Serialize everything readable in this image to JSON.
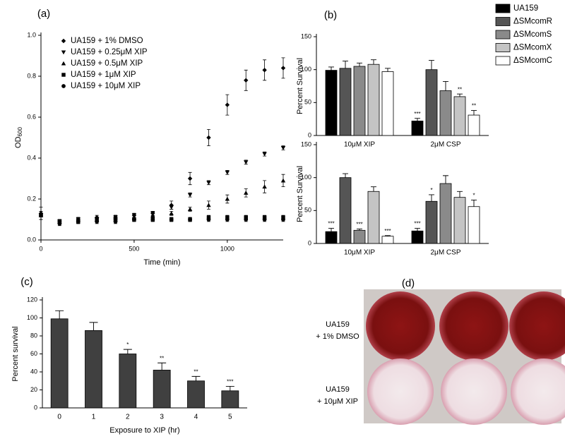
{
  "chart_data": [
    {
      "type": "scatter",
      "label": "(a)",
      "xlabel": "Time (min)",
      "ylabel": "OD",
      "ylabel_sub": "600",
      "x": [
        0,
        100,
        200,
        300,
        400,
        500,
        600,
        700,
        800,
        900,
        1000,
        1100,
        1200,
        1300
      ],
      "xlim": [
        0,
        1300
      ],
      "xticks": [
        0,
        500,
        1000
      ],
      "ylim": [
        0,
        1.0
      ],
      "yticks": [
        {
          "value": 0,
          "label": "0.0"
        },
        0.2,
        0.4,
        0.6,
        0.8,
        {
          "value": 1.0,
          "label": "1.0"
        }
      ],
      "legend": "upper left",
      "series": [
        {
          "name": "UA159 + 1% DMSO",
          "color": "#000000",
          "marker": "diamond",
          "values": [
            0.13,
            0.09,
            0.1,
            0.11,
            0.11,
            0.12,
            0.13,
            0.17,
            0.3,
            0.5,
            0.66,
            0.78,
            0.83,
            0.84
          ],
          "errors": [
            0.03,
            0.01,
            0.01,
            0.01,
            0.01,
            0.01,
            0.01,
            0.02,
            0.03,
            0.04,
            0.05,
            0.05,
            0.05,
            0.05
          ]
        },
        {
          "name": "UA159 + 0.25μM XIP",
          "color": "#000000",
          "marker": "triangle-down",
          "values": [
            0.12,
            0.09,
            0.1,
            0.1,
            0.11,
            0.12,
            0.13,
            0.16,
            0.22,
            0.28,
            0.33,
            0.38,
            0.42,
            0.45
          ],
          "errors": [
            0.02,
            0.01,
            0.01,
            0.01,
            0.01,
            0.01,
            0.01,
            0.01,
            0.01,
            0.01,
            0.01,
            0.01,
            0.01,
            0.01
          ]
        },
        {
          "name": "UA159 + 0.5μM XIP",
          "color": "#000000",
          "marker": "triangle-up",
          "values": [
            0.12,
            0.09,
            0.1,
            0.1,
            0.11,
            0.11,
            0.12,
            0.13,
            0.15,
            0.17,
            0.2,
            0.23,
            0.26,
            0.29
          ],
          "errors": [
            0.02,
            0.01,
            0.01,
            0.01,
            0.01,
            0.01,
            0.01,
            0.01,
            0.01,
            0.02,
            0.02,
            0.02,
            0.03,
            0.03
          ]
        },
        {
          "name": "UA159 + 1μM XIP",
          "color": "#000000",
          "marker": "square",
          "values": [
            0.12,
            0.09,
            0.09,
            0.1,
            0.1,
            0.1,
            0.1,
            0.1,
            0.1,
            0.11,
            0.11,
            0.11,
            0.11,
            0.11
          ],
          "errors": [
            0.02,
            0.01,
            0.01,
            0.01,
            0.01,
            0.01,
            0.01,
            0.01,
            0.01,
            0.01,
            0.01,
            0.01,
            0.01,
            0.01
          ]
        },
        {
          "name": "UA159 + 10μM XIP",
          "color": "#000000",
          "marker": "circle",
          "values": [
            0.12,
            0.08,
            0.09,
            0.09,
            0.09,
            0.1,
            0.1,
            0.1,
            0.1,
            0.1,
            0.1,
            0.1,
            0.1,
            0.1
          ],
          "errors": [
            0.02,
            0.01,
            0.01,
            0.01,
            0.01,
            0.01,
            0.01,
            0.01,
            0.01,
            0.01,
            0.01,
            0.01,
            0.01,
            0.01
          ]
        }
      ]
    },
    {
      "type": "bar",
      "label": "(b)",
      "ylabel": "Percent Survival",
      "legend": "upper right",
      "categories": [
        "10μM XIP",
        "2μM CSP"
      ],
      "ylim": [
        0,
        150
      ],
      "yticks": [
        0,
        50,
        100,
        150
      ],
      "series": [
        {
          "name": "UA159",
          "color": "#000000",
          "values": [
            99,
            22
          ],
          "errors": [
            5,
            4
          ],
          "significance": [
            null,
            "***"
          ]
        },
        {
          "name": "ΔSMcomR",
          "color": "#555555",
          "values": [
            102,
            100
          ],
          "errors": [
            11,
            14
          ],
          "significance": [
            null,
            null
          ]
        },
        {
          "name": "ΔSMcomS",
          "color": "#8a8a8a",
          "values": [
            105,
            68
          ],
          "errors": [
            5,
            14
          ],
          "significance": [
            null,
            null
          ]
        },
        {
          "name": "ΔSMcomX",
          "color": "#c4c4c4",
          "values": [
            108,
            59
          ],
          "errors": [
            7,
            4
          ],
          "significance": [
            null,
            "**"
          ]
        },
        {
          "name": "ΔSMcomC",
          "color": "#ffffff",
          "values": [
            97,
            31
          ],
          "errors": [
            5,
            7
          ],
          "significance": [
            null,
            "**"
          ]
        }
      ]
    },
    {
      "type": "bar",
      "ylabel": "Percent Survival",
      "categories": [
        "10μM XIP",
        "2μM CSP"
      ],
      "ylim": [
        0,
        150
      ],
      "yticks": [
        0,
        50,
        100,
        150
      ],
      "series": [
        {
          "color": "#000000",
          "values": [
            18,
            19
          ],
          "errors": [
            5,
            4
          ],
          "significance": [
            "***",
            "***"
          ]
        },
        {
          "color": "#555555",
          "values": [
            100,
            64
          ],
          "errors": [
            6,
            10
          ],
          "significance": [
            null,
            "*"
          ]
        },
        {
          "color": "#8a8a8a",
          "values": [
            20,
            91
          ],
          "errors": [
            2,
            12
          ],
          "significance": [
            "***",
            null
          ]
        },
        {
          "color": "#c4c4c4",
          "values": [
            79,
            70
          ],
          "errors": [
            7,
            9
          ],
          "significance": [
            null,
            null
          ]
        },
        {
          "color": "#ffffff",
          "values": [
            11,
            56
          ],
          "errors": [
            1,
            10
          ],
          "significance": [
            "***",
            "*"
          ]
        }
      ]
    },
    {
      "type": "bar",
      "label": "(c)",
      "xlabel": "Exposure to XIP (hr)",
      "ylabel": "Percent survival",
      "categories": [
        "0",
        "1",
        "2",
        "3",
        "4",
        "5"
      ],
      "color": "#404040",
      "values": [
        99,
        86,
        60,
        42,
        30,
        19
      ],
      "errors": [
        9,
        9,
        5,
        8,
        5,
        5
      ],
      "significance": [
        null,
        null,
        "*",
        "**",
        "**",
        "***"
      ],
      "ylim": [
        0,
        120
      ],
      "yticks": [
        0,
        20,
        40,
        60,
        80,
        100,
        120
      ]
    }
  ],
  "photo": {
    "label": "(d)",
    "rows": [
      [
        "UA159",
        "+ 1% DMSO"
      ],
      [
        "UA159",
        "+ 10μM XIP"
      ]
    ]
  }
}
